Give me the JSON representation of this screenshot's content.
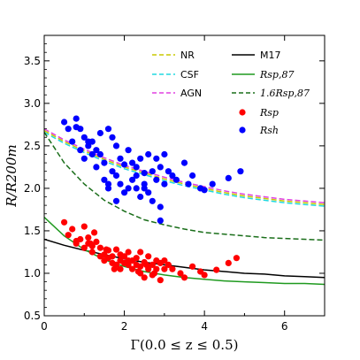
{
  "chart_data": {
    "type": "scatter",
    "xlabel": "Γ(0.0 ≤ z ≤ 0.5)",
    "ylabel": "R/R200m",
    "xlim": [
      0,
      7
    ],
    "ylim": [
      0.5,
      3.8
    ],
    "x_ticks": [
      0,
      2,
      4,
      6
    ],
    "y_ticks": [
      0.5,
      1.0,
      1.5,
      2.0,
      2.5,
      3.0,
      3.5
    ],
    "x_tick_labels": [
      "0",
      "2",
      "4",
      "6"
    ],
    "y_tick_labels": [
      "0.5",
      "1.0",
      "1.5",
      "2.0",
      "2.5",
      "3.0",
      "3.5"
    ],
    "grid": false,
    "legend_position": "top-right",
    "colors": {
      "NR": "#c8c800",
      "CSF": "#20d8e0",
      "AGN": "#e040e0",
      "M17": "#000000",
      "Rsp87": "#1f9a1f",
      "Rsp87x16": "#1a6e1a",
      "Rsp": "#ff0000",
      "Rsh": "#0000ff"
    },
    "legend": [
      {
        "key": "NR",
        "label": "NR",
        "style": "dashed"
      },
      {
        "key": "CSF",
        "label": "CSF",
        "style": "dashed"
      },
      {
        "key": "AGN",
        "label": "AGN",
        "style": "dashed"
      },
      {
        "key": "M17",
        "label": "M17",
        "style": "solid"
      },
      {
        "key": "Rsp87",
        "label": "Rsp,87",
        "style": "solid"
      },
      {
        "key": "Rsp87x16",
        "label": "1.6Rsp,87",
        "style": "dashed"
      },
      {
        "key": "Rsp",
        "label": "Rsp",
        "style": "marker"
      },
      {
        "key": "Rsh",
        "label": "Rsh",
        "style": "marker"
      }
    ],
    "series": [
      {
        "key": "NR",
        "kind": "line",
        "x": [
          0,
          0.5,
          1,
          1.5,
          2,
          2.5,
          3,
          3.5,
          4,
          4.5,
          5,
          5.5,
          6,
          6.5,
          7
        ],
        "y": [
          2.68,
          2.55,
          2.44,
          2.34,
          2.25,
          2.18,
          2.11,
          2.05,
          2.0,
          1.95,
          1.91,
          1.88,
          1.85,
          1.83,
          1.81
        ]
      },
      {
        "key": "CSF",
        "kind": "line",
        "x": [
          0,
          0.5,
          1,
          1.5,
          2,
          2.5,
          3,
          3.5,
          4,
          4.5,
          5,
          5.5,
          6,
          6.5,
          7
        ],
        "y": [
          2.66,
          2.53,
          2.42,
          2.32,
          2.23,
          2.16,
          2.09,
          2.03,
          1.98,
          1.93,
          1.89,
          1.86,
          1.83,
          1.81,
          1.79
        ]
      },
      {
        "key": "AGN",
        "kind": "line",
        "x": [
          0,
          0.5,
          1,
          1.5,
          2,
          2.5,
          3,
          3.5,
          4,
          4.5,
          5,
          5.5,
          6,
          6.5,
          7
        ],
        "y": [
          2.7,
          2.57,
          2.46,
          2.36,
          2.27,
          2.2,
          2.13,
          2.07,
          2.02,
          1.97,
          1.93,
          1.9,
          1.87,
          1.85,
          1.83
        ]
      },
      {
        "key": "M17",
        "kind": "line",
        "x": [
          0,
          0.5,
          1,
          1.5,
          2,
          2.5,
          3,
          3.5,
          4,
          4.5,
          5,
          5.5,
          6,
          6.5,
          7
        ],
        "y": [
          1.4,
          1.33,
          1.27,
          1.22,
          1.17,
          1.13,
          1.1,
          1.07,
          1.04,
          1.02,
          1.0,
          0.99,
          0.97,
          0.96,
          0.95
        ]
      },
      {
        "key": "Rsp87",
        "kind": "line",
        "x": [
          0,
          0.5,
          1,
          1.5,
          2,
          2.5,
          3,
          3.5,
          4,
          4.5,
          5,
          5.5,
          6,
          6.5,
          7
        ],
        "y": [
          1.66,
          1.44,
          1.28,
          1.16,
          1.08,
          1.02,
          0.98,
          0.95,
          0.93,
          0.91,
          0.9,
          0.89,
          0.88,
          0.88,
          0.87
        ]
      },
      {
        "key": "Rsp87x16",
        "kind": "line",
        "x": [
          0,
          0.5,
          1,
          1.5,
          2,
          2.5,
          3,
          3.5,
          4,
          4.5,
          5,
          5.5,
          6,
          6.5,
          7
        ],
        "y": [
          2.66,
          2.3,
          2.05,
          1.86,
          1.73,
          1.63,
          1.57,
          1.52,
          1.48,
          1.46,
          1.44,
          1.42,
          1.41,
          1.4,
          1.39
        ]
      },
      {
        "key": "Rsp",
        "kind": "scatter",
        "x": [
          0.5,
          0.6,
          0.7,
          0.8,
          0.8,
          0.9,
          1.0,
          1.0,
          1.1,
          1.1,
          1.2,
          1.2,
          1.3,
          1.4,
          1.4,
          1.5,
          1.5,
          1.6,
          1.6,
          1.7,
          1.7,
          1.8,
          1.8,
          1.9,
          1.9,
          2.0,
          2.0,
          2.1,
          2.1,
          2.2,
          2.2,
          2.3,
          2.3,
          2.4,
          2.4,
          2.5,
          2.5,
          2.6,
          2.6,
          2.7,
          2.7,
          2.8,
          2.8,
          2.9,
          2.9,
          3.0,
          3.0,
          3.1,
          3.2,
          3.4,
          3.5,
          3.7,
          3.9,
          4.0,
          4.3,
          4.6,
          4.8,
          1.9,
          2.4,
          2.1,
          2.6,
          1.55,
          1.75,
          2.35,
          2.55,
          2.75,
          1.25,
          1.15
        ],
        "y": [
          1.6,
          1.45,
          1.52,
          1.38,
          1.35,
          1.4,
          1.55,
          1.3,
          1.42,
          1.35,
          1.32,
          1.25,
          1.37,
          1.2,
          1.3,
          1.15,
          1.22,
          1.18,
          1.27,
          1.12,
          1.2,
          1.1,
          1.28,
          1.15,
          1.05,
          1.2,
          1.12,
          1.1,
          1.25,
          1.05,
          1.15,
          1.1,
          1.18,
          1.0,
          1.08,
          1.13,
          0.95,
          1.05,
          1.2,
          1.1,
          0.98,
          1.15,
          1.05,
          1.12,
          0.92,
          1.05,
          1.15,
          1.1,
          1.05,
          1.0,
          0.95,
          1.08,
          1.02,
          0.98,
          1.04,
          1.12,
          1.18,
          1.22,
          1.25,
          1.15,
          1.08,
          1.28,
          1.05,
          1.02,
          1.1,
          1.0,
          1.48,
          1.35
        ]
      },
      {
        "key": "Rsh",
        "kind": "scatter",
        "x": [
          0.5,
          0.6,
          0.7,
          0.8,
          0.8,
          0.9,
          1.0,
          1.0,
          1.1,
          1.1,
          1.2,
          1.3,
          1.3,
          1.4,
          1.5,
          1.5,
          1.6,
          1.6,
          1.7,
          1.7,
          1.8,
          1.8,
          1.9,
          1.9,
          2.0,
          2.0,
          2.1,
          2.2,
          2.2,
          2.3,
          2.3,
          2.4,
          2.4,
          2.5,
          2.5,
          2.6,
          2.6,
          2.7,
          2.7,
          2.8,
          2.8,
          2.9,
          2.9,
          3.0,
          3.0,
          3.1,
          3.2,
          3.3,
          3.5,
          3.6,
          3.7,
          3.9,
          4.0,
          4.2,
          4.6,
          4.9,
          1.6,
          1.8,
          2.1,
          2.3,
          2.9,
          2.5,
          0.9,
          1.2,
          1.4
        ],
        "y": [
          2.78,
          2.7,
          2.55,
          2.72,
          2.82,
          2.45,
          2.6,
          2.35,
          2.5,
          2.55,
          2.4,
          2.25,
          2.45,
          2.65,
          2.3,
          2.1,
          2.7,
          2.0,
          2.6,
          2.2,
          2.15,
          1.85,
          2.35,
          2.05,
          2.28,
          1.95,
          2.45,
          2.1,
          2.3,
          2.25,
          2.0,
          1.9,
          2.35,
          2.18,
          2.05,
          2.4,
          1.95,
          2.2,
          1.85,
          2.35,
          2.1,
          2.25,
          1.62,
          2.4,
          2.05,
          2.2,
          2.15,
          2.1,
          2.3,
          2.05,
          2.15,
          2.0,
          1.98,
          2.05,
          2.12,
          2.2,
          2.05,
          2.5,
          2.0,
          2.15,
          1.78,
          2.0,
          2.7,
          2.55,
          2.4
        ]
      }
    ]
  }
}
